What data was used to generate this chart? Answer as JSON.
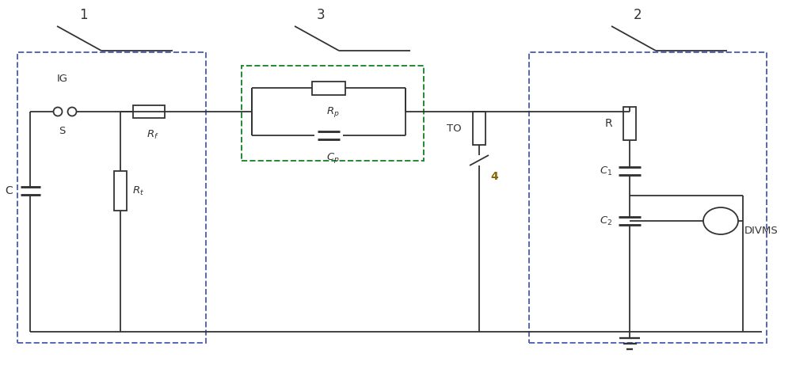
{
  "bg_color": "#ffffff",
  "line_color": "#333333",
  "box1_color": "#5566bb",
  "box2_color": "#5566bb",
  "box3_color": "#228833",
  "label1": "1",
  "label2": "2",
  "label3": "3",
  "label4": "4",
  "label_IG": "IG",
  "label_S": "S",
  "label_Rf": "$R_f$",
  "label_Rt": "$R_t$",
  "label_C": "C",
  "label_Rp": "$R_p$",
  "label_Cp": "$C_p$",
  "label_TO": "TO",
  "label_R": "R",
  "label_C1": "$C_1$",
  "label_C2": "$C_2$",
  "label_DIVMS": "DIVMS"
}
